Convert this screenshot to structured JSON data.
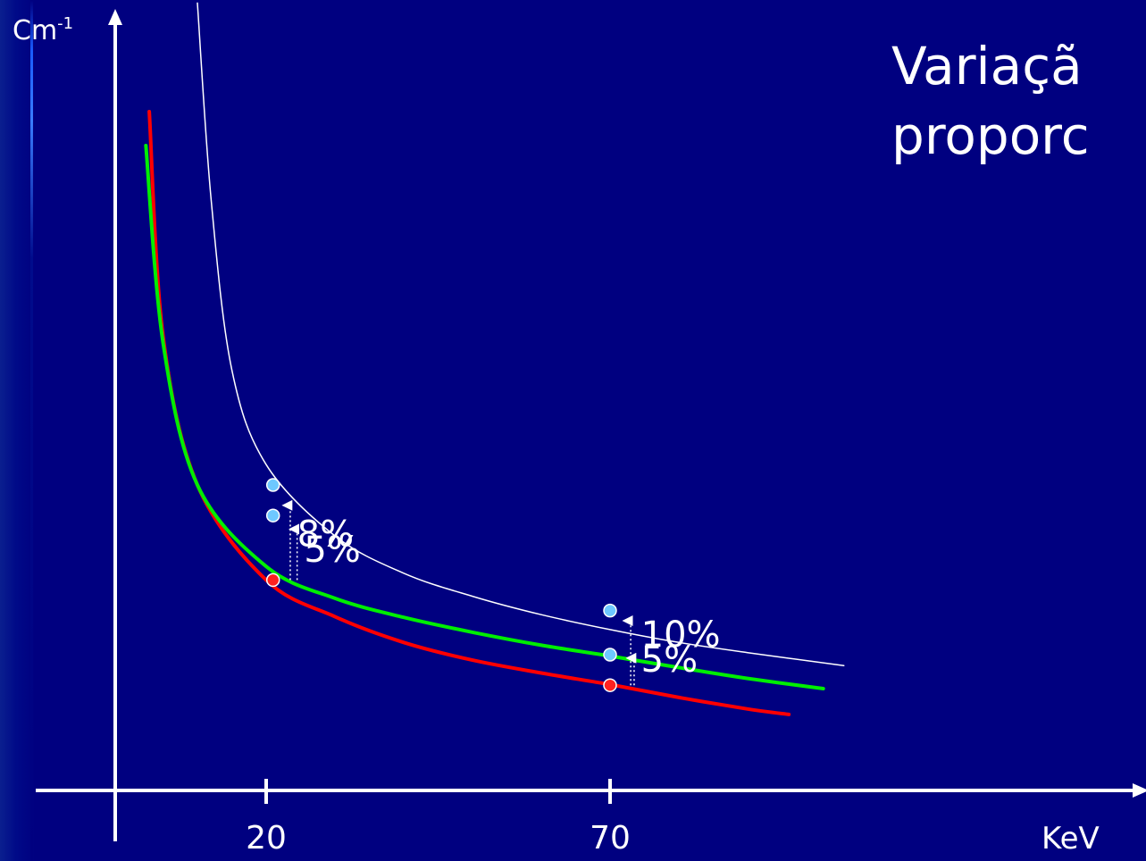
{
  "title": {
    "line1": "Variaçã",
    "line2": "proporc"
  },
  "chart_data": {
    "type": "line",
    "xlabel": "KeV",
    "ylabel_base": "Cm",
    "ylabel_exp": "-1",
    "x_ticks": [
      "20",
      "70"
    ],
    "x_tick_values": [
      20,
      70
    ],
    "series": [
      {
        "color": "#ff0000",
        "stroke": 4,
        "x": [
          3,
          5,
          10,
          20,
          30,
          40,
          50,
          60,
          70,
          80,
          90,
          96
        ],
        "y": [
          100,
          67,
          45,
          31,
          25.6,
          21.8,
          19.2,
          17.3,
          15.6,
          13.7,
          12.0,
          11.2
        ]
      },
      {
        "color": "#00ee00",
        "stroke": 4,
        "x": [
          2.5,
          5,
          10,
          20,
          30,
          40,
          50,
          60,
          70,
          80,
          90,
          101
        ],
        "y": [
          95,
          66,
          45,
          33,
          28.3,
          25.5,
          23.3,
          21.4,
          19.8,
          18.1,
          16.5,
          15.0
        ]
      },
      {
        "color": "#ffffff",
        "stroke": 1.5,
        "x": [
          10,
          12,
          15,
          20,
          30,
          40,
          50,
          60,
          70,
          80,
          90,
          104
        ],
        "y": [
          116,
          87,
          62,
          48,
          37.5,
          32.0,
          28.6,
          25.9,
          23.7,
          21.8,
          20.3,
          18.4
        ]
      }
    ],
    "points": [
      {
        "x": 21,
        "y": 31,
        "color": "#ff2020"
      },
      {
        "x": 21,
        "y": 40.5,
        "color": "#6ec8ff"
      },
      {
        "x": 21,
        "y": 45,
        "color": "#6ec8ff"
      },
      {
        "x": 70,
        "y": 15.5,
        "color": "#ff2020"
      },
      {
        "x": 70,
        "y": 20,
        "color": "#6ec8ff"
      },
      {
        "x": 70,
        "y": 26.5,
        "color": "#6ec8ff"
      }
    ],
    "arrows": [
      {
        "x": 23.5,
        "y_from": 31,
        "y_to": 42
      },
      {
        "x": 24.5,
        "y_from": 31,
        "y_to": 38.5
      },
      {
        "x": 73,
        "y_from": 15.5,
        "y_to": 25
      },
      {
        "x": 73.5,
        "y_from": 15.5,
        "y_to": 19.5
      }
    ],
    "annotations": [
      {
        "text": "8%",
        "x": 24.5,
        "y": 36
      },
      {
        "text": "5%",
        "x": 25.5,
        "y": 33.7
      },
      {
        "text": "10%",
        "x": 74.5,
        "y": 21.2
      },
      {
        "text": "5%",
        "x": 74.5,
        "y": 17.5
      }
    ],
    "xlim": [
      -22,
      130
    ],
    "ylim": [
      -10,
      130
    ],
    "grid": false
  }
}
